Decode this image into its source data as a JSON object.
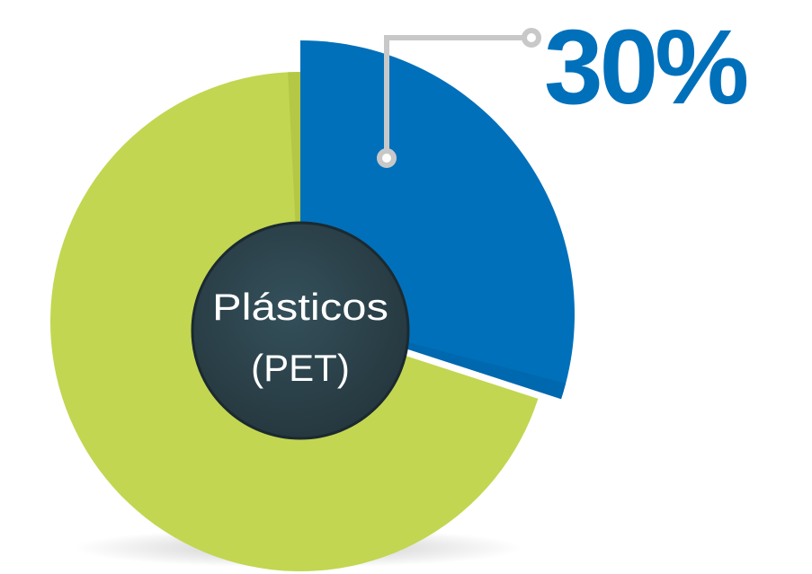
{
  "chart_data": {
    "type": "pie",
    "slices": [
      {
        "value": 30,
        "color": "#0070bb",
        "color_dark": "#0062a6"
      },
      {
        "value": 70,
        "color": "#c2d651",
        "color_dark": "#a9be3e"
      }
    ],
    "center_label": [
      "Plásticos",
      "(PET)"
    ],
    "data_label": "30%",
    "center_color": "#2c414a",
    "label_color": "#0070bb",
    "leader_color": "#c8c8c8"
  }
}
